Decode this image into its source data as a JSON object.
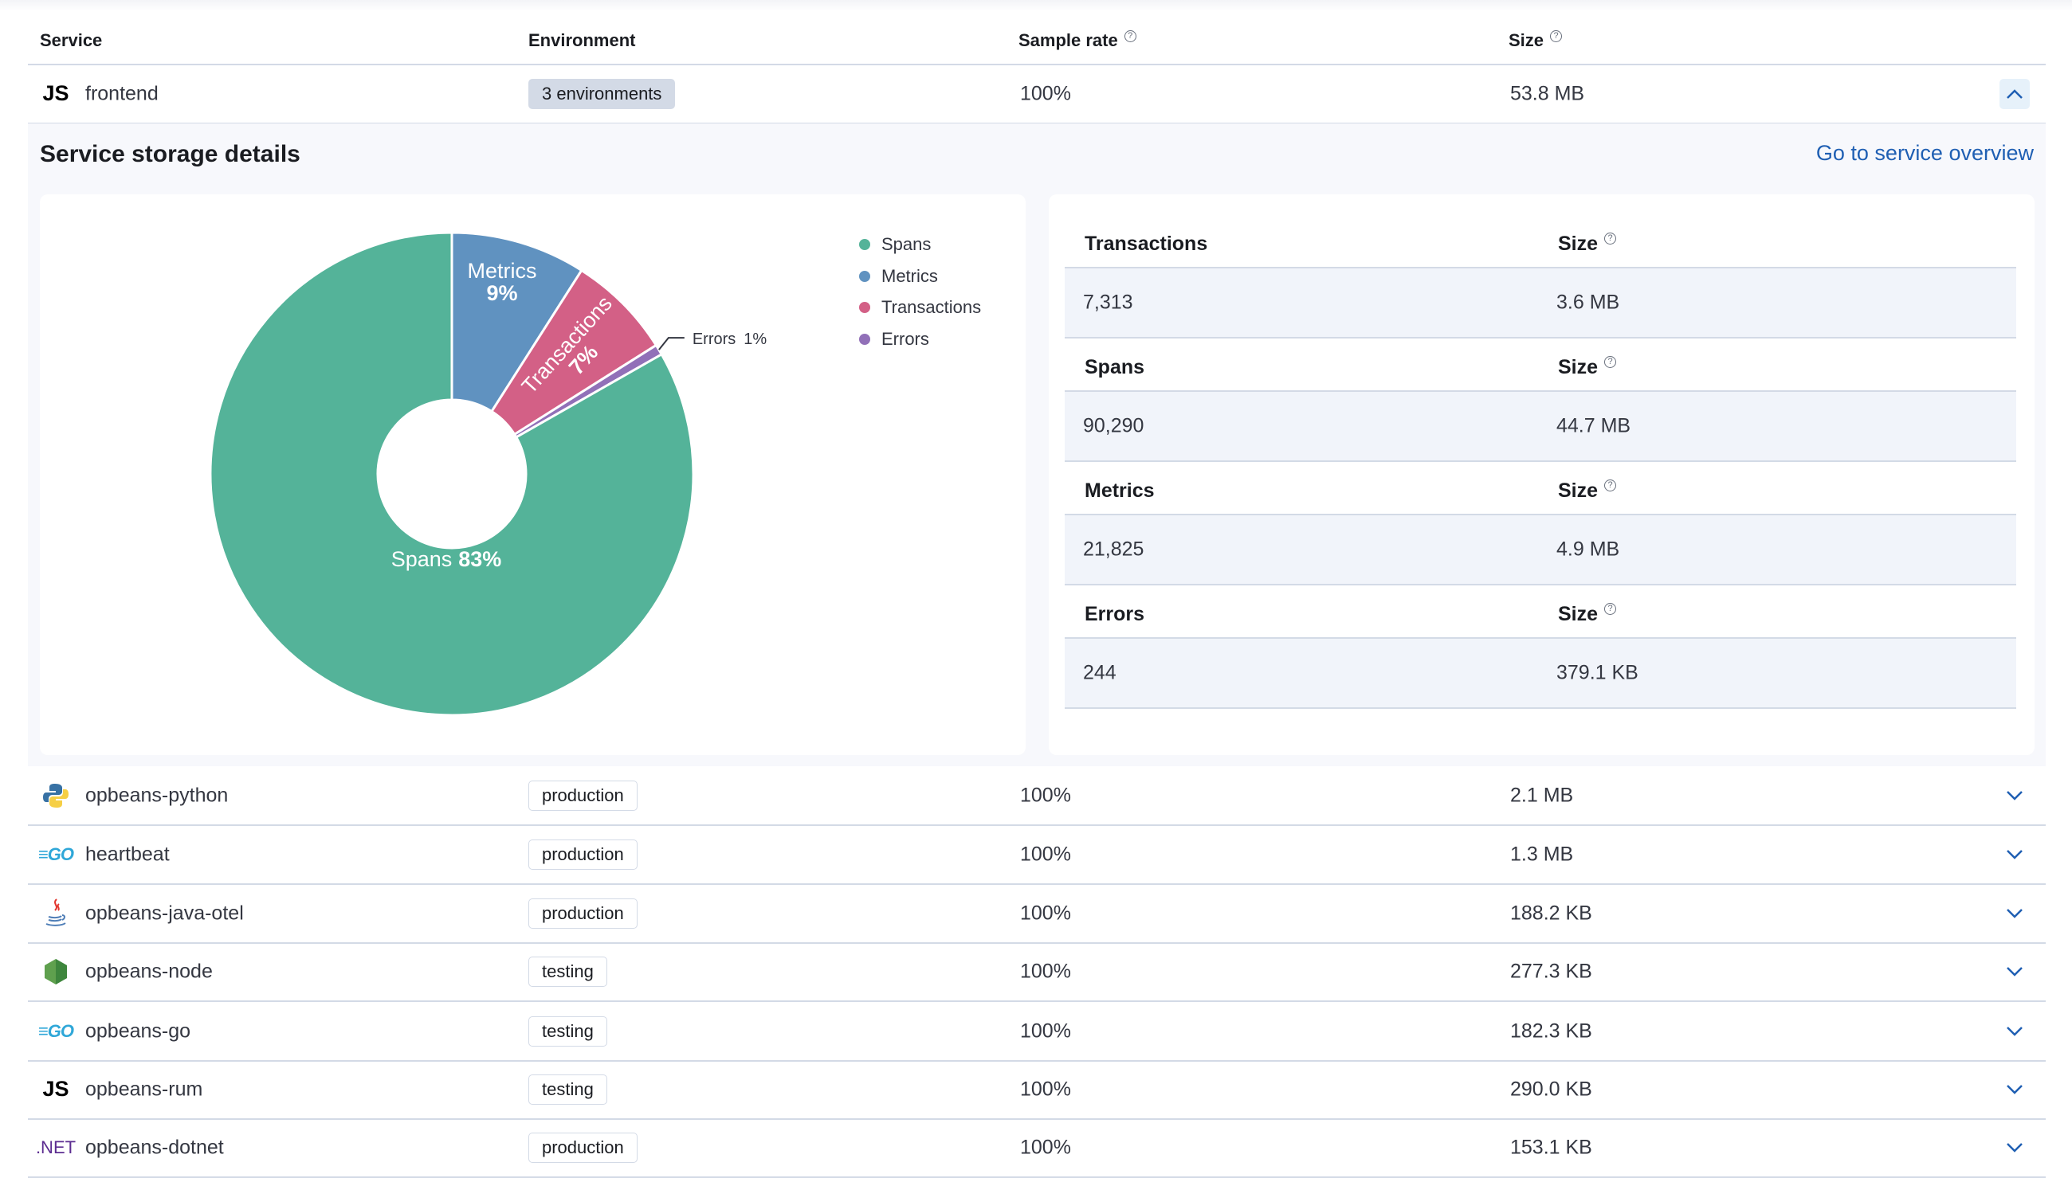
{
  "table": {
    "headers": {
      "service": "Service",
      "environment": "Environment",
      "sample_rate": "Sample rate",
      "size": "Size"
    },
    "rows": [
      {
        "icon": "js-icon",
        "service": "frontend",
        "environment": "3 environments",
        "sample_rate": "100%",
        "size": "53.8 MB",
        "expanded": true
      },
      {
        "icon": "python-icon",
        "service": "opbeans-python",
        "environment": "production",
        "sample_rate": "100%",
        "size": "2.1 MB"
      },
      {
        "icon": "go-icon",
        "service": "heartbeat",
        "environment": "production",
        "sample_rate": "100%",
        "size": "1.3 MB"
      },
      {
        "icon": "java-icon",
        "service": "opbeans-java-otel",
        "environment": "production",
        "sample_rate": "100%",
        "size": "188.2 KB"
      },
      {
        "icon": "nodejs-icon",
        "service": "opbeans-node",
        "environment": "testing",
        "sample_rate": "100%",
        "size": "277.3 KB"
      },
      {
        "icon": "go-icon",
        "service": "opbeans-go",
        "environment": "testing",
        "sample_rate": "100%",
        "size": "182.3 KB"
      },
      {
        "icon": "js-icon",
        "service": "opbeans-rum",
        "environment": "testing",
        "sample_rate": "100%",
        "size": "290.0 KB"
      },
      {
        "icon": "dotnet-icon",
        "service": "opbeans-dotnet",
        "environment": "production",
        "sample_rate": "100%",
        "size": "153.1 KB"
      }
    ],
    "icon_text": {
      "js": "JS",
      "go": "GO",
      "dotnet": ".NET"
    }
  },
  "details": {
    "title": "Service storage details",
    "overview_link": "Go to service overview",
    "sections": [
      {
        "label": "Transactions",
        "size_label": "Size",
        "count": "7,313",
        "size": "3.6 MB"
      },
      {
        "label": "Spans",
        "size_label": "Size",
        "count": "90,290",
        "size": "44.7 MB"
      },
      {
        "label": "Metrics",
        "size_label": "Size",
        "count": "21,825",
        "size": "4.9 MB"
      },
      {
        "label": "Errors",
        "size_label": "Size",
        "count": "244",
        "size": "379.1 KB"
      }
    ]
  },
  "chart_data": {
    "type": "pie",
    "donut": true,
    "legend_position": "right",
    "slices": [
      {
        "name": "Metrics",
        "value": 9,
        "label": "Metrics",
        "pct_label": "9%",
        "color": "#6092c0"
      },
      {
        "name": "Transactions",
        "value": 7,
        "label": "Transactions",
        "pct_label": "7%",
        "color": "#d36086"
      },
      {
        "name": "Errors",
        "value": 0.7,
        "label": "Errors",
        "pct_label": "1%",
        "color": "#9170b8"
      },
      {
        "name": "Spans",
        "value": 83,
        "label": "Spans",
        "pct_label": "83%",
        "color": "#54b399"
      }
    ],
    "legend": [
      "Spans",
      "Metrics",
      "Transactions",
      "Errors"
    ]
  },
  "colors": {
    "link": "#1f5fb3",
    "border": "#d3dae6",
    "panel_bg": "#f7f8fc"
  }
}
